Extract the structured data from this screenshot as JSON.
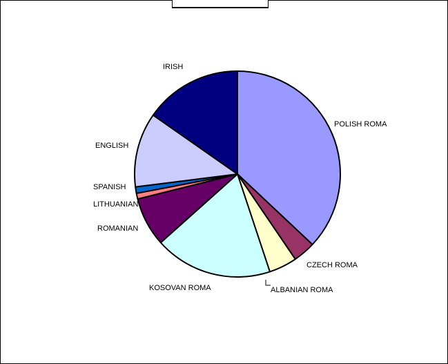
{
  "chart_data": {
    "type": "pie",
    "title": "",
    "slices": [
      {
        "label": "POLISH ROMA",
        "value": 37.0,
        "color": "#9999ff"
      },
      {
        "label": "CZECH ROMA",
        "value": 3.5,
        "color": "#993366"
      },
      {
        "label": "ALBANIAN ROMA",
        "value": 4.4,
        "color": "#ffffcc"
      },
      {
        "label": "KOSOVAN ROMA",
        "value": 18.5,
        "color": "#ccffff"
      },
      {
        "label": "ROMANIAN",
        "value": 7.7,
        "color": "#660066"
      },
      {
        "label": "LITHUANIAN",
        "value": 0.9,
        "color": "#ff8080"
      },
      {
        "label": "SPANISH",
        "value": 1.0,
        "color": "#0066cc"
      },
      {
        "label": "ENGLISH",
        "value": 11.7,
        "color": "#ccccff"
      },
      {
        "label": "IRISH",
        "value": 15.3,
        "color": "#000080"
      }
    ],
    "legend": "none",
    "start": "top, clockwise"
  }
}
